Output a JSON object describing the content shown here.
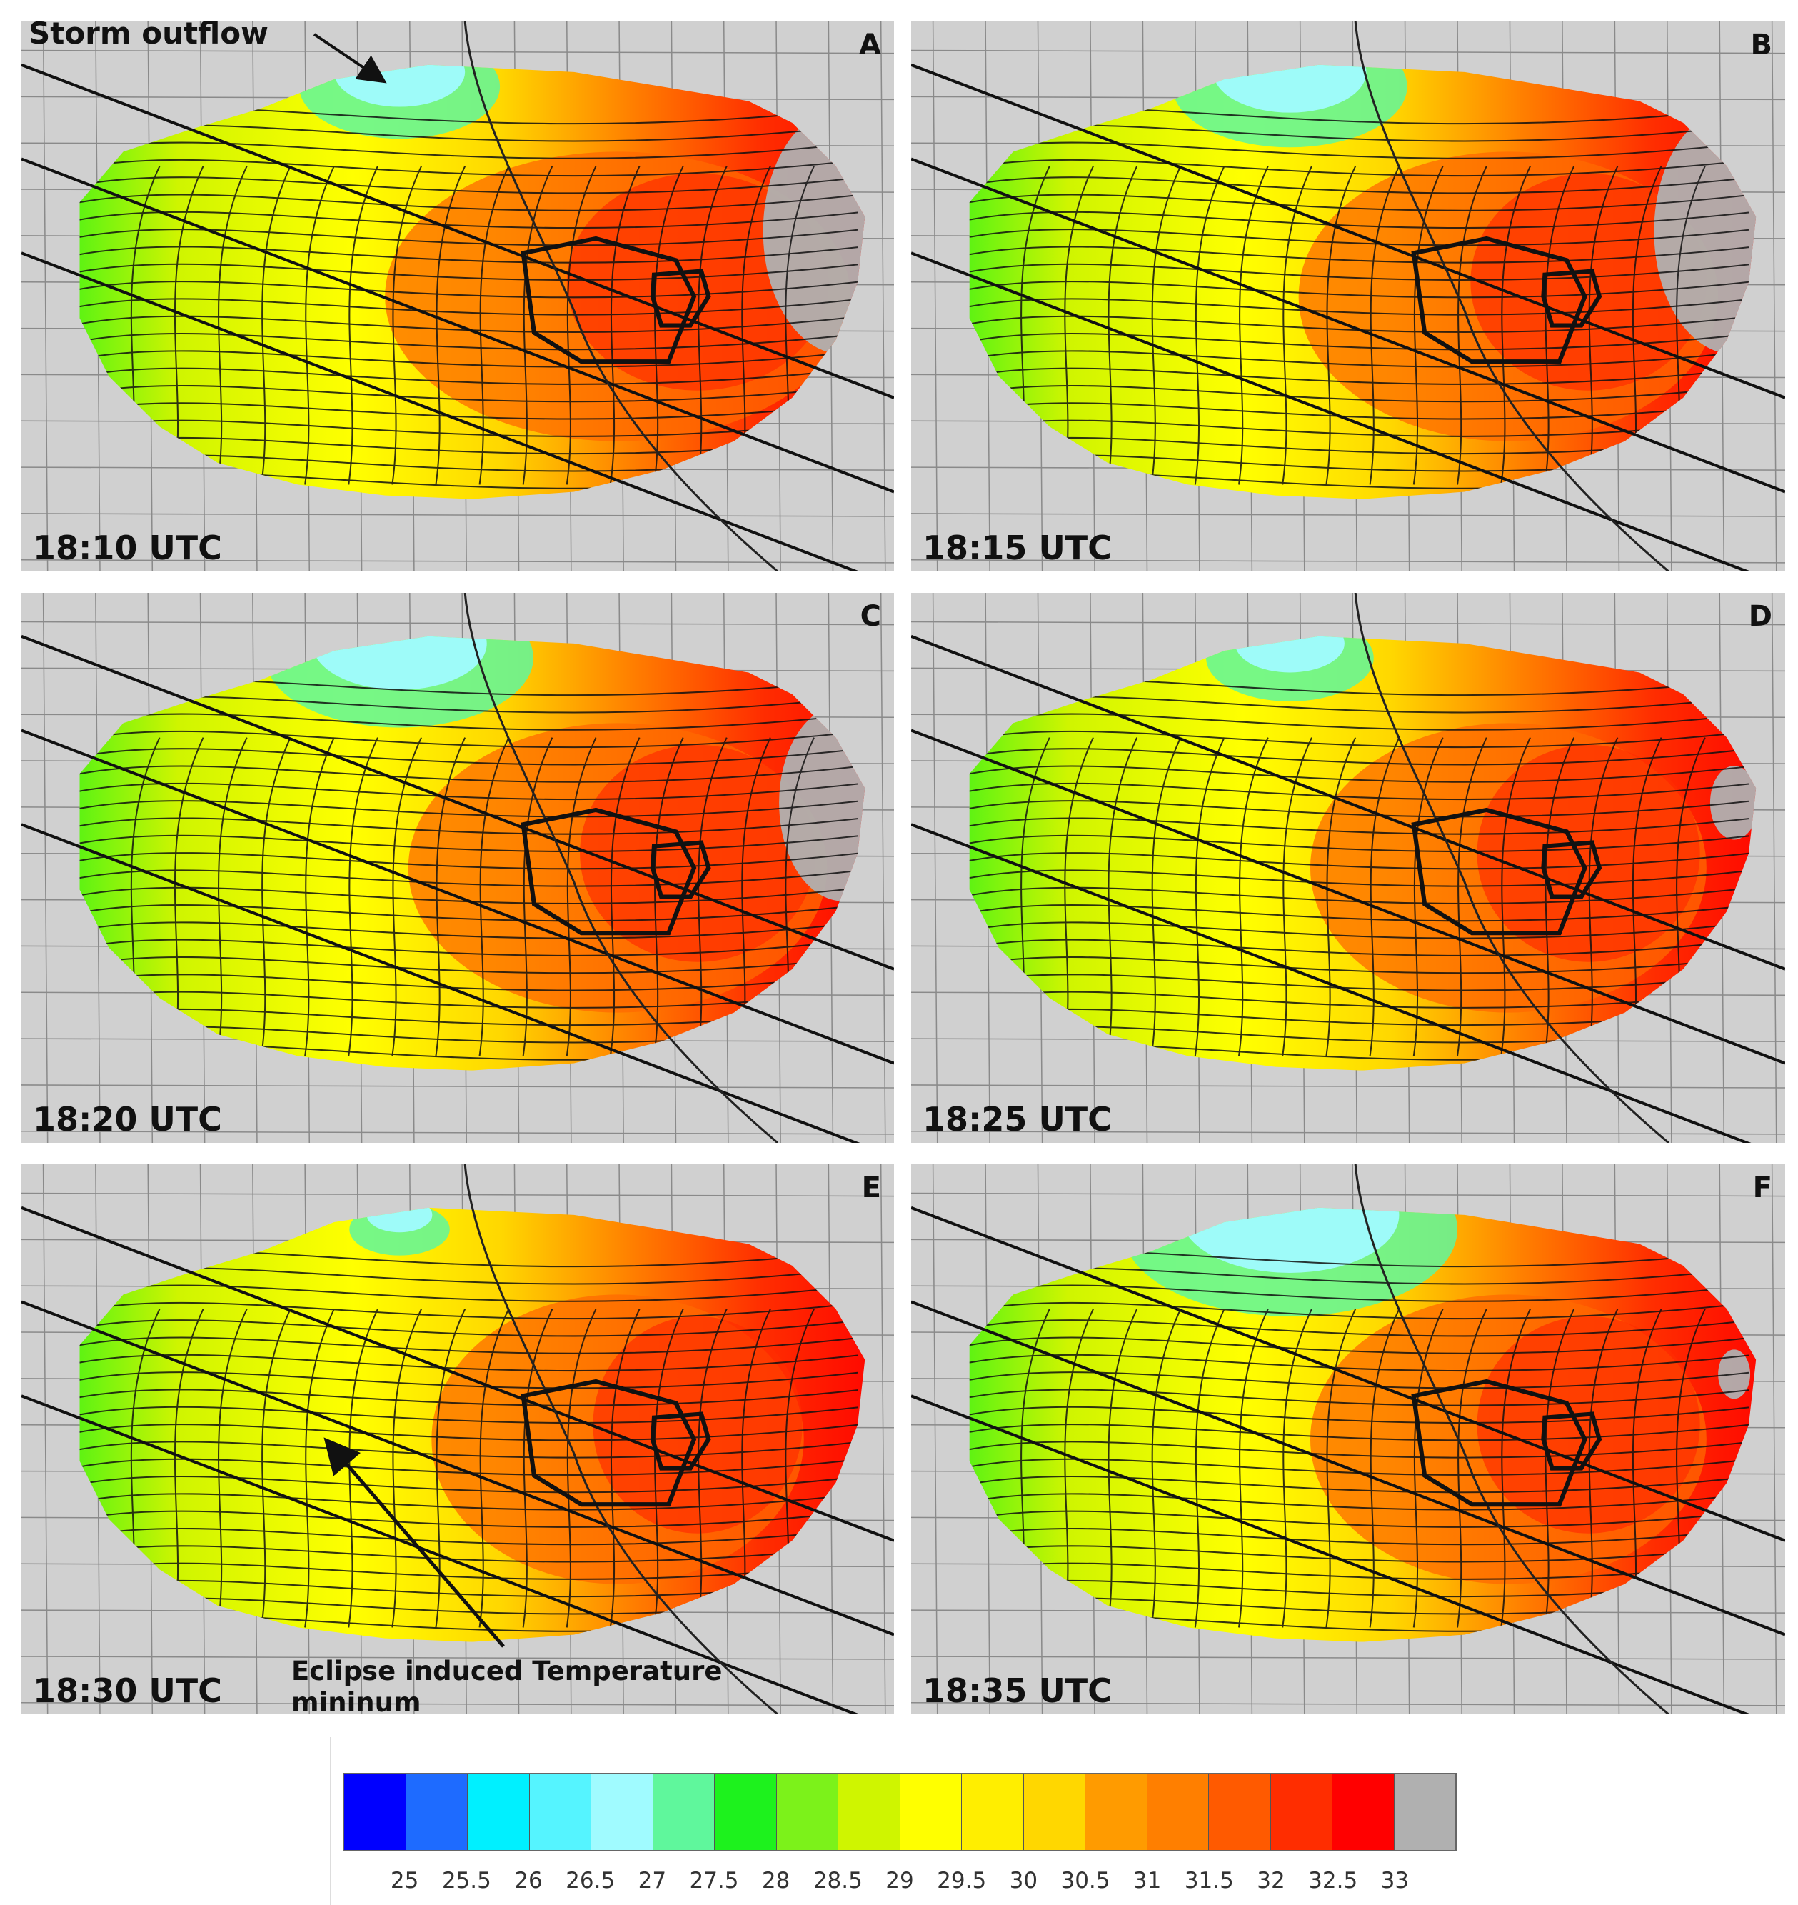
{
  "panels": [
    {
      "letter": "A",
      "time": "18:10 UTC",
      "warm_strength": 1.0,
      "cool_pool": 0.6,
      "gray_edge": 1.0
    },
    {
      "letter": "B",
      "time": "18:15 UTC",
      "warm_strength": 0.9,
      "cool_pool": 0.7,
      "gray_edge": 1.0
    },
    {
      "letter": "C",
      "time": "18:20 UTC",
      "warm_strength": 0.9,
      "cool_pool": 0.8,
      "gray_edge": 0.8
    },
    {
      "letter": "D",
      "time": "18:25 UTC",
      "warm_strength": 0.85,
      "cool_pool": 0.5,
      "gray_edge": 0.3
    },
    {
      "letter": "E",
      "time": "18:30 UTC",
      "warm_strength": 0.8,
      "cool_pool": 0.3,
      "gray_edge": 0.0
    },
    {
      "letter": "F",
      "time": "18:35 UTC",
      "warm_strength": 0.85,
      "cool_pool": 1.0,
      "gray_edge": 0.2
    }
  ],
  "annotations": {
    "storm_outflow": "Storm outflow",
    "eclipse_min_line1": "Eclipse induced Temperature",
    "eclipse_min_line2": "mininum"
  },
  "legend": {
    "colors": [
      "#0000ff",
      "#1e6bff",
      "#00f0ff",
      "#55f4ff",
      "#a0fbff",
      "#5ff79c",
      "#1df21d",
      "#7cf21a",
      "#cff500",
      "#ffff00",
      "#ffee00",
      "#ffd700",
      "#ff9b00",
      "#ff7f00",
      "#ff5a00",
      "#ff2d00",
      "#ff0000",
      "#b0b0b0"
    ],
    "ticks": [
      "25",
      "25.5",
      "26",
      "26.5",
      "27",
      "27.5",
      "28",
      "28.5",
      "29",
      "29.5",
      "30",
      "30.5",
      "31",
      "31.5",
      "32",
      "32.5",
      "33"
    ]
  }
}
